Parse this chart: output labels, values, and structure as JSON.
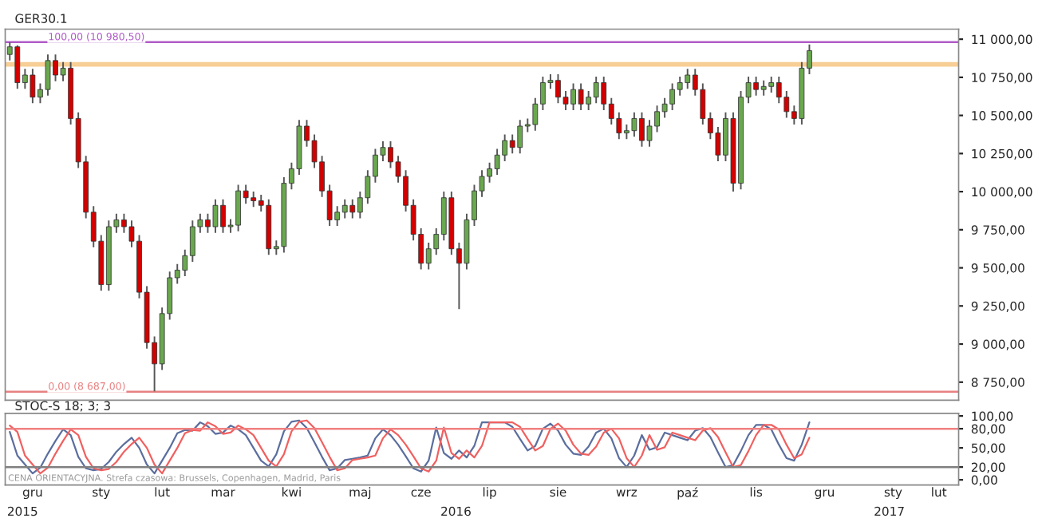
{
  "chart_data": [
    {
      "type": "candlestick",
      "title": "GER30.1",
      "tick_labels": "y",
      "categories": [
        null,
        null,
        null,
        null,
        null,
        null,
        null,
        null,
        null,
        null,
        null,
        null,
        null,
        null,
        null,
        null,
        null,
        null,
        null,
        null,
        null,
        null,
        null,
        null,
        null,
        null,
        null,
        null,
        null,
        null,
        null,
        null,
        null,
        null,
        null,
        null,
        null,
        null,
        null,
        null,
        null,
        null,
        null,
        null,
        null,
        null,
        null,
        null,
        null,
        null,
        null,
        null,
        null,
        null,
        null,
        null,
        null,
        null,
        null,
        null,
        null,
        null,
        null,
        null,
        null,
        null,
        null,
        null,
        null,
        null,
        null,
        null,
        null,
        null,
        null,
        null,
        null,
        null,
        null,
        null,
        null,
        null,
        null,
        null,
        null,
        null,
        null,
        null,
        null,
        null,
        null,
        null,
        null,
        null,
        null,
        null,
        null,
        null,
        null,
        null,
        null,
        null,
        null,
        null,
        null,
        null,
        null,
        null,
        null,
        null,
        null,
        null,
        null,
        null,
        null,
        null,
        null,
        null,
        null,
        null,
        null,
        null,
        null,
        null,
        null
      ],
      "ohlc": [
        [
          10900,
          10980,
          10860,
          10950
        ],
        [
          10950,
          10960,
          10675,
          10715
        ],
        [
          10715,
          10805,
          10675,
          10765
        ],
        [
          10765,
          10805,
          10580,
          10620
        ],
        [
          10620,
          10710,
          10580,
          10670
        ],
        [
          10670,
          10900,
          10630,
          10860
        ],
        [
          10860,
          10900,
          10725,
          10765
        ],
        [
          10765,
          10850,
          10725,
          10810
        ],
        [
          10810,
          10850,
          10440,
          10480
        ],
        [
          10480,
          10520,
          10155,
          10195
        ],
        [
          10195,
          10235,
          9825,
          9865
        ],
        [
          9865,
          9905,
          9635,
          9675
        ],
        [
          9675,
          9715,
          9350,
          9390
        ],
        [
          9390,
          9810,
          9350,
          9770
        ],
        [
          9770,
          9855,
          9730,
          9815
        ],
        [
          9815,
          9855,
          9730,
          9770
        ],
        [
          9770,
          9810,
          9635,
          9675
        ],
        [
          9675,
          9715,
          9300,
          9340
        ],
        [
          9340,
          9380,
          8970,
          9010
        ],
        [
          9010,
          9050,
          8690,
          8870
        ],
        [
          8870,
          9240,
          8830,
          9200
        ],
        [
          9200,
          9475,
          9160,
          9435
        ],
        [
          9435,
          9525,
          9395,
          9485
        ],
        [
          9485,
          9620,
          9445,
          9580
        ],
        [
          9580,
          9810,
          9540,
          9770
        ],
        [
          9770,
          9855,
          9730,
          9815
        ],
        [
          9815,
          9855,
          9730,
          9770
        ],
        [
          9770,
          9950,
          9730,
          9910
        ],
        [
          9910,
          9950,
          9730,
          9770
        ],
        [
          9770,
          9820,
          9730,
          9780
        ],
        [
          9780,
          10045,
          9740,
          10005
        ],
        [
          10005,
          10045,
          9920,
          9960
        ],
        [
          9960,
          10000,
          9900,
          9940
        ],
        [
          9940,
          9980,
          9870,
          9910
        ],
        [
          9910,
          9950,
          9585,
          9625
        ],
        [
          9625,
          9680,
          9585,
          9640
        ],
        [
          9640,
          10095,
          9600,
          10055
        ],
        [
          10055,
          10190,
          10015,
          10150
        ],
        [
          10150,
          10470,
          10110,
          10430
        ],
        [
          10430,
          10470,
          10295,
          10335
        ],
        [
          10335,
          10375,
          10155,
          10195
        ],
        [
          10195,
          10235,
          9965,
          10005
        ],
        [
          10005,
          10045,
          9775,
          9815
        ],
        [
          9815,
          9905,
          9775,
          9865
        ],
        [
          9865,
          9950,
          9825,
          9910
        ],
        [
          9910,
          9950,
          9825,
          9865
        ],
        [
          9865,
          10000,
          9825,
          9960
        ],
        [
          9960,
          10140,
          9920,
          10100
        ],
        [
          10100,
          10280,
          10060,
          10240
        ],
        [
          10240,
          10330,
          10200,
          10290
        ],
        [
          10290,
          10330,
          10155,
          10195
        ],
        [
          10195,
          10235,
          10060,
          10100
        ],
        [
          10100,
          10140,
          9870,
          9910
        ],
        [
          9910,
          9950,
          9680,
          9720
        ],
        [
          9720,
          9760,
          9490,
          9530
        ],
        [
          9530,
          9665,
          9490,
          9625
        ],
        [
          9625,
          9760,
          9585,
          9720
        ],
        [
          9720,
          10000,
          9680,
          9960
        ],
        [
          9960,
          10000,
          9585,
          9625
        ],
        [
          9625,
          9665,
          9230,
          9530
        ],
        [
          9530,
          9855,
          9490,
          9815
        ],
        [
          9815,
          10045,
          9775,
          10005
        ],
        [
          10005,
          10140,
          9965,
          10100
        ],
        [
          10100,
          10190,
          10060,
          10150
        ],
        [
          10150,
          10280,
          10110,
          10240
        ],
        [
          10240,
          10375,
          10200,
          10335
        ],
        [
          10335,
          10375,
          10250,
          10290
        ],
        [
          10290,
          10470,
          10250,
          10430
        ],
        [
          10430,
          10480,
          10390,
          10440
        ],
        [
          10440,
          10615,
          10400,
          10575
        ],
        [
          10575,
          10755,
          10535,
          10715
        ],
        [
          10715,
          10770,
          10675,
          10730
        ],
        [
          10730,
          10770,
          10580,
          10620
        ],
        [
          10620,
          10660,
          10535,
          10575
        ],
        [
          10575,
          10710,
          10535,
          10670
        ],
        [
          10670,
          10710,
          10535,
          10575
        ],
        [
          10575,
          10660,
          10535,
          10620
        ],
        [
          10620,
          10755,
          10580,
          10715
        ],
        [
          10715,
          10755,
          10535,
          10575
        ],
        [
          10575,
          10615,
          10440,
          10480
        ],
        [
          10480,
          10520,
          10345,
          10385
        ],
        [
          10385,
          10440,
          10345,
          10400
        ],
        [
          10400,
          10520,
          10360,
          10480
        ],
        [
          10480,
          10520,
          10295,
          10335
        ],
        [
          10335,
          10470,
          10295,
          10430
        ],
        [
          10430,
          10565,
          10390,
          10525
        ],
        [
          10525,
          10615,
          10485,
          10575
        ],
        [
          10575,
          10710,
          10535,
          10670
        ],
        [
          10670,
          10755,
          10630,
          10715
        ],
        [
          10715,
          10805,
          10675,
          10765
        ],
        [
          10765,
          10805,
          10630,
          10670
        ],
        [
          10670,
          10710,
          10440,
          10480
        ],
        [
          10480,
          10520,
          10345,
          10385
        ],
        [
          10385,
          10425,
          10200,
          10240
        ],
        [
          10240,
          10520,
          10200,
          10480
        ],
        [
          10480,
          10520,
          10000,
          10055
        ],
        [
          10055,
          10660,
          10015,
          10620
        ],
        [
          10620,
          10755,
          10580,
          10715
        ],
        [
          10715,
          10755,
          10630,
          10670
        ],
        [
          10670,
          10730,
          10630,
          10690
        ],
        [
          10690,
          10755,
          10650,
          10715
        ],
        [
          10715,
          10755,
          10580,
          10620
        ],
        [
          10620,
          10660,
          10485,
          10525
        ],
        [
          10525,
          10565,
          10440,
          10480
        ],
        [
          10480,
          10850,
          10440,
          10810
        ],
        [
          10810,
          10965,
          10770,
          10925
        ],
        null,
        null,
        null,
        null,
        null,
        null,
        null,
        null,
        null,
        null,
        null,
        null,
        null,
        null,
        null,
        null,
        null,
        null,
        null
      ],
      "colors": [
        "#6aa84f",
        "#d40000",
        "#6aa84f",
        "#d40000",
        "#6aa84f",
        "#6aa84f",
        "#d40000",
        "#6aa84f",
        "#d40000",
        "#d40000",
        "#d40000",
        "#d40000",
        "#d40000",
        "#6aa84f",
        "#6aa84f",
        "#d40000",
        "#d40000",
        "#d40000",
        "#d40000",
        "#d40000",
        "#6aa84f",
        "#6aa84f",
        "#6aa84f",
        "#6aa84f",
        "#6aa84f",
        "#6aa84f",
        "#d40000",
        "#6aa84f",
        "#d40000",
        "#6aa84f",
        "#6aa84f",
        "#d40000",
        "#d40000",
        "#d40000",
        "#d40000",
        "#6aa84f",
        "#6aa84f",
        "#6aa84f",
        "#6aa84f",
        "#d40000",
        "#d40000",
        "#d40000",
        "#d40000",
        "#6aa84f",
        "#6aa84f",
        "#d40000",
        "#6aa84f",
        "#6aa84f",
        "#6aa84f",
        "#6aa84f",
        "#d40000",
        "#d40000",
        "#d40000",
        "#d40000",
        "#d40000",
        "#6aa84f",
        "#6aa84f",
        "#6aa84f",
        "#d40000",
        "#d40000",
        "#6aa84f",
        "#6aa84f",
        "#6aa84f",
        "#6aa84f",
        "#6aa84f",
        "#6aa84f",
        "#d40000",
        "#6aa84f",
        "#6aa84f",
        "#6aa84f",
        "#6aa84f",
        "#6aa84f",
        "#d40000",
        "#d40000",
        "#6aa84f",
        "#d40000",
        "#6aa84f",
        "#6aa84f",
        "#d40000",
        "#d40000",
        "#d40000",
        "#6aa84f",
        "#6aa84f",
        "#d40000",
        "#6aa84f",
        "#6aa84f",
        "#6aa84f",
        "#6aa84f",
        "#6aa84f",
        "#6aa84f",
        "#d40000",
        "#d40000",
        "#d40000",
        "#d40000",
        "#6aa84f",
        "#d40000",
        "#6aa84f",
        "#6aa84f",
        "#d40000",
        "#6aa84f",
        "#6aa84f",
        "#d40000",
        "#d40000",
        "#d40000",
        "#6aa84f",
        "#6aa84f",
        null,
        null,
        null,
        null,
        null,
        null,
        null,
        null,
        null,
        null,
        null,
        null,
        null,
        null,
        null,
        null,
        null,
        null,
        null
      ],
      "ylim": [
        8632,
        11066
      ],
      "yticks": [
        {
          "value": 8750,
          "label": "8 750,00"
        },
        {
          "value": 9000,
          "label": "9 000,00"
        },
        {
          "value": 9250,
          "label": "9 250,00"
        },
        {
          "value": 9500,
          "label": "9 500,00"
        },
        {
          "value": 9750,
          "label": "9 750,00"
        },
        {
          "value": 10000,
          "label": "10 000,00"
        },
        {
          "value": 10250,
          "label": "10 250,00"
        },
        {
          "value": 10500,
          "label": "10 500,00"
        },
        {
          "value": 10750,
          "label": "10 750,00"
        },
        {
          "value": 11000,
          "label": "11 000,00"
        }
      ],
      "ref_lines": [
        {
          "axis": "y",
          "value": 10980.5,
          "label": "100,00 (10 980,50)",
          "color": "#b05cc8"
        },
        {
          "axis": "y",
          "value": 8687,
          "label": "0,00 (8 687,00)",
          "color": "#e88080"
        }
      ],
      "bands": [
        {
          "axis": "y",
          "from": 10820,
          "to": 10850,
          "color": "#f5c27a"
        }
      ]
    },
    {
      "type": "line",
      "title": "STOC-S 18; 3; 3",
      "categories": [
        null,
        null,
        null,
        "gru",
        null,
        null,
        null,
        null,
        null,
        null,
        null,
        null,
        "sty",
        null,
        null,
        null,
        null,
        null,
        null,
        null,
        "lut",
        null,
        null,
        null,
        null,
        null,
        null,
        null,
        "mar",
        null,
        null,
        null,
        null,
        null,
        null,
        null,
        null,
        "kwi",
        null,
        null,
        null,
        null,
        null,
        null,
        null,
        null,
        "maj",
        null,
        null,
        null,
        null,
        null,
        null,
        null,
        "cze",
        null,
        null,
        null,
        null,
        null,
        null,
        null,
        null,
        "lip",
        null,
        null,
        null,
        null,
        null,
        null,
        null,
        null,
        "sie",
        null,
        null,
        null,
        null,
        null,
        null,
        null,
        null,
        "wrz",
        null,
        null,
        null,
        null,
        null,
        null,
        null,
        "paź",
        null,
        null,
        null,
        null,
        null,
        null,
        null,
        null,
        "lis",
        null,
        null,
        null,
        null,
        null,
        null,
        null,
        null,
        "gru",
        null,
        null,
        null,
        null,
        null,
        null,
        null,
        null,
        "sty",
        null,
        null,
        null,
        null,
        null,
        "lut",
        null,
        null
      ],
      "series": [
        {
          "color": "#5b6e9e",
          "values": [
            75,
            38,
            24,
            10,
            19,
            41,
            61,
            79,
            70,
            36,
            18,
            15,
            17,
            28,
            44,
            56,
            66,
            50,
            24,
            10,
            30,
            50,
            73,
            78,
            77,
            90,
            84,
            72,
            74,
            85,
            79,
            70,
            50,
            30,
            21,
            40,
            76,
            91,
            93,
            81,
            59,
            36,
            15,
            18,
            31,
            33,
            35,
            38,
            65,
            79,
            70,
            55,
            37,
            18,
            13,
            30,
            82,
            42,
            33,
            46,
            35,
            53,
            90,
            90,
            90,
            90,
            83,
            64,
            46,
            53,
            80,
            88,
            77,
            55,
            41,
            39,
            52,
            74,
            80,
            65,
            34,
            20,
            38,
            70,
            47,
            51,
            74,
            70,
            66,
            62,
            77,
            81,
            67,
            43,
            20,
            23,
            45,
            70,
            86,
            86,
            79,
            55,
            34,
            30,
            55,
            90,
            null,
            null,
            null,
            null,
            null,
            null,
            null,
            null,
            null,
            null,
            null,
            null,
            null,
            null,
            null,
            null,
            null,
            null,
            null
          ]
        },
        {
          "color": "#f06060",
          "values": [
            85,
            75,
            38,
            24,
            10,
            19,
            41,
            61,
            79,
            70,
            36,
            18,
            15,
            17,
            28,
            44,
            56,
            66,
            50,
            24,
            10,
            30,
            50,
            73,
            78,
            77,
            90,
            84,
            72,
            74,
            85,
            79,
            70,
            50,
            30,
            21,
            40,
            76,
            91,
            93,
            81,
            59,
            36,
            15,
            18,
            31,
            33,
            35,
            38,
            65,
            79,
            70,
            55,
            37,
            18,
            13,
            30,
            82,
            42,
            33,
            46,
            35,
            53,
            90,
            90,
            90,
            90,
            83,
            64,
            46,
            53,
            80,
            88,
            77,
            55,
            41,
            39,
            52,
            74,
            80,
            65,
            34,
            20,
            38,
            70,
            47,
            51,
            74,
            70,
            66,
            62,
            77,
            81,
            67,
            43,
            20,
            23,
            45,
            70,
            86,
            86,
            79,
            55,
            34,
            40,
            66,
            null,
            null,
            null,
            null,
            null,
            null,
            null,
            null,
            null,
            null,
            null,
            null,
            null,
            null,
            null,
            null,
            null,
            null,
            null
          ]
        }
      ],
      "ylim": [
        -8,
        104
      ],
      "yticks": [
        {
          "value": 0,
          "label": "0,00"
        },
        {
          "value": 20,
          "label": "20,00"
        },
        {
          "value": 50,
          "label": "50,00"
        },
        {
          "value": 80,
          "label": "80,00"
        },
        {
          "value": 100,
          "label": "100,00"
        }
      ],
      "x2lim": [
        2014.96,
        2017.16
      ],
      "x2ticks": [
        2015,
        2016,
        2017
      ],
      "ref_lines": [
        {
          "axis": "y",
          "value": 80,
          "color": "#f08080"
        },
        {
          "axis": "y",
          "value": 20,
          "color": "#808080"
        }
      ],
      "annotations": [
        "CENA ORIENTACYJNA. Strefa czasowa: Brussels, Copenhagen, Madrid, Paris"
      ]
    }
  ]
}
